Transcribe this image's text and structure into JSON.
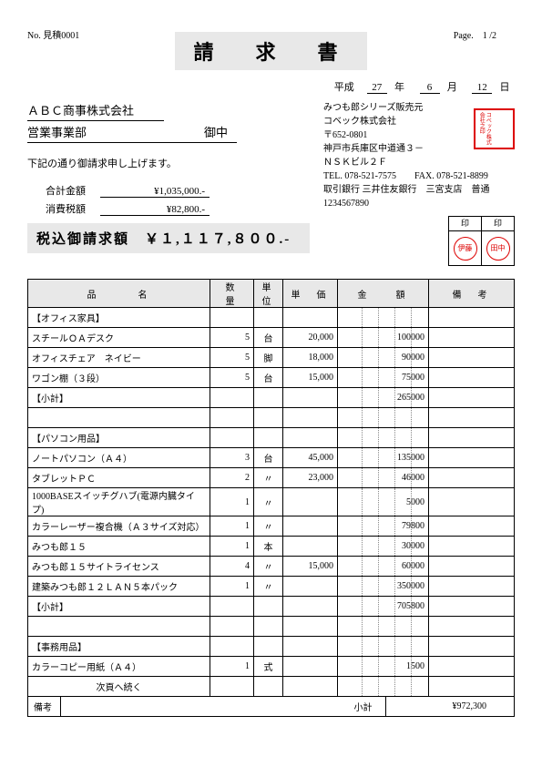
{
  "page_label": "Page.",
  "page_current": "1",
  "page_sep": "/",
  "page_total": "2",
  "doc_no_label": "No.",
  "doc_no": "見積0001",
  "title": "請　求　書",
  "era": "平成",
  "year": "27",
  "year_unit": "年",
  "month": "6",
  "month_unit": "月",
  "day": "12",
  "day_unit": "日",
  "customer1": "ＡＢＣ商事株式会社",
  "customer2": "営業事業部",
  "onchu": "御中",
  "greeting": "下記の通り御請求申し上げます。",
  "sum1_label": "合計金額",
  "sum1_value": "¥1,035,000.-",
  "sum2_label": "消費税額",
  "sum2_value": "¥82,800.-",
  "total_label": "税込御請求額",
  "total_value": "￥１,１１７,８００.-",
  "vendor": {
    "l1": "みつも郎シリーズ販売元",
    "l2": "コベック株式会社",
    "l3": "〒652-0801",
    "l4": "神戸市兵庫区中道通３－",
    "l5": "ＮＳＫビル２Ｆ",
    "l6": "TEL. 078-521-7575　　FAX. 078-521-8899",
    "l7": "取引銀行 三井住友銀行　三宮支店　普通1234567890"
  },
  "seal_text": "コベック株式会社之印",
  "stamp_header": "印",
  "stamp1": "伊藤",
  "stamp2": "田中",
  "headers": {
    "name": "品　　　名",
    "qty": "数　量",
    "unit": "単位",
    "price": "単　価",
    "amt": "金　　額",
    "note": "備　考"
  },
  "rows": [
    {
      "name": "【オフィス家具】",
      "qty": "",
      "unit": "",
      "price": "",
      "amt": ""
    },
    {
      "name": "スチールＯＡデスク",
      "qty": "5",
      "unit": "台",
      "price": "20,000",
      "amt": "100000"
    },
    {
      "name": "オフィスチェア　ネイビー",
      "qty": "5",
      "unit": "脚",
      "price": "18,000",
      "amt": "90000"
    },
    {
      "name": "ワゴン棚（３段）",
      "qty": "5",
      "unit": "台",
      "price": "15,000",
      "amt": "75000"
    },
    {
      "name": "【小計】",
      "qty": "",
      "unit": "",
      "price": "",
      "amt": "265000"
    },
    {
      "name": "",
      "qty": "",
      "unit": "",
      "price": "",
      "amt": ""
    },
    {
      "name": "【パソコン用品】",
      "qty": "",
      "unit": "",
      "price": "",
      "amt": ""
    },
    {
      "name": "ノートパソコン（Ａ４）",
      "qty": "3",
      "unit": "台",
      "price": "45,000",
      "amt": "135000"
    },
    {
      "name": "タブレットＰＣ",
      "qty": "2",
      "unit": "〃",
      "price": "23,000",
      "amt": "46000"
    },
    {
      "name": "1000BASEスイッチグハブ(電源内臓タイプ)",
      "qty": "1",
      "unit": "〃",
      "price": "",
      "amt": "5000"
    },
    {
      "name": "カラーレーザー複合機（Ａ３サイズ対応）",
      "qty": "1",
      "unit": "〃",
      "price": "",
      "amt": "79800"
    },
    {
      "name": "みつも郎１５",
      "qty": "1",
      "unit": "本",
      "price": "",
      "amt": "30000"
    },
    {
      "name": "みつも郎１５サイトライセンス",
      "qty": "4",
      "unit": "〃",
      "price": "15,000",
      "amt": "60000"
    },
    {
      "name": "建築みつも郎１２ＬＡＮ５本パック",
      "qty": "1",
      "unit": "〃",
      "price": "",
      "amt": "350000"
    },
    {
      "name": "【小計】",
      "qty": "",
      "unit": "",
      "price": "",
      "amt": "705800"
    },
    {
      "name": "",
      "qty": "",
      "unit": "",
      "price": "",
      "amt": ""
    },
    {
      "name": "【事務用品】",
      "qty": "",
      "unit": "",
      "price": "",
      "amt": ""
    },
    {
      "name": "カラーコピー用紙（Ａ４）",
      "qty": "1",
      "unit": "式",
      "price": "",
      "amt": "1500"
    },
    {
      "name": "次頁へ続く",
      "center": true,
      "qty": "",
      "unit": "",
      "price": "",
      "amt": ""
    }
  ],
  "footer_biko": "備考",
  "footer_subtotal_label": "小計",
  "footer_subtotal_value": "¥972,300",
  "colors": {
    "seal": "#d00000",
    "header_bg": "#e8e8e8"
  }
}
